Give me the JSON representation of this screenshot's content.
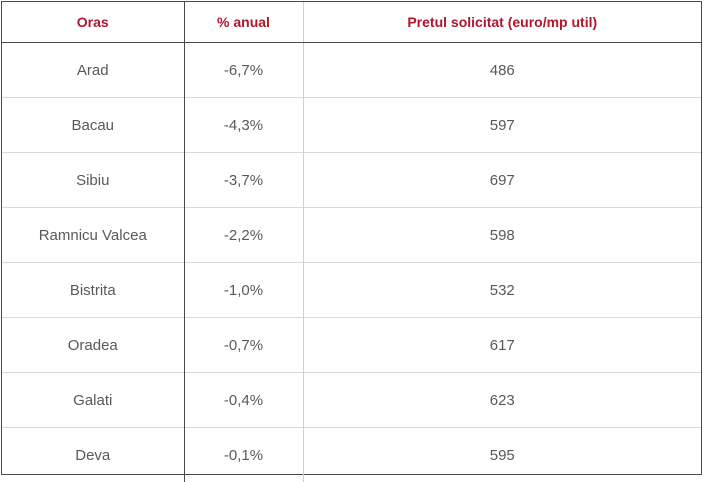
{
  "table": {
    "headers": {
      "city": "Oras",
      "annual": "% anual",
      "price": "Pretul solicitat (euro/mp util)"
    },
    "rows": [
      {
        "city": "Arad",
        "annual": "-6,7%",
        "price": "486"
      },
      {
        "city": "Bacau",
        "annual": "-4,3%",
        "price": "597"
      },
      {
        "city": "Sibiu",
        "annual": "-3,7%",
        "price": "697"
      },
      {
        "city": "Ramnicu Valcea",
        "annual": "-2,2%",
        "price": "598"
      },
      {
        "city": "Bistrita",
        "annual": "-1,0%",
        "price": "532"
      },
      {
        "city": "Oradea",
        "annual": "-0,7%",
        "price": "617"
      },
      {
        "city": "Galati",
        "annual": "-0,4%",
        "price": "623"
      },
      {
        "city": "Deva",
        "annual": "-0,1%",
        "price": "595"
      }
    ]
  },
  "colors": {
    "header_text": "#b0162b",
    "body_text": "#595959",
    "outer_border": "#4a4a4a",
    "row_divider": "#d9d9d9"
  }
}
